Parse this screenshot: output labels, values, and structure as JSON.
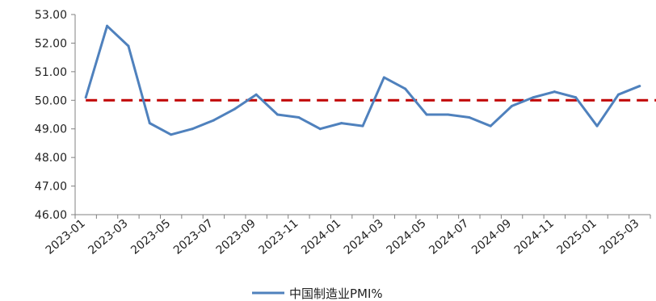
{
  "chart_data": {
    "type": "line",
    "title": "",
    "xlabel": "",
    "ylabel": "",
    "ylim": [
      46,
      53
    ],
    "y_ticks": [
      "46.00",
      "47.00",
      "48.00",
      "49.00",
      "50.00",
      "51.00",
      "52.00",
      "53.00"
    ],
    "x": [
      "2023-01",
      "2023-02",
      "2023-03",
      "2023-04",
      "2023-05",
      "2023-06",
      "2023-07",
      "2023-08",
      "2023-09",
      "2023-10",
      "2023-11",
      "2023-12",
      "2024-01",
      "2024-02",
      "2024-03",
      "2024-04",
      "2024-05",
      "2024-06",
      "2024-07",
      "2024-08",
      "2024-09",
      "2024-10",
      "2024-11",
      "2024-12",
      "2025-01",
      "2025-02",
      "2025-03"
    ],
    "x_tick_labels": [
      "2023-01",
      "2023-03",
      "2023-05",
      "2023-07",
      "2023-09",
      "2023-11",
      "2024-01",
      "2024-03",
      "2024-05",
      "2024-07",
      "2024-09",
      "2024-11",
      "2025-01",
      "2025-03"
    ],
    "series": [
      {
        "name": "中国制造业PMI%",
        "color": "#4f81bd",
        "values": [
          50.1,
          52.6,
          51.9,
          49.2,
          48.8,
          49.0,
          49.3,
          49.7,
          50.2,
          49.5,
          49.4,
          49.0,
          49.2,
          49.1,
          50.8,
          50.4,
          49.5,
          49.5,
          49.4,
          49.1,
          49.8,
          50.1,
          50.3,
          50.1,
          49.1,
          50.2,
          50.5
        ]
      }
    ],
    "reference_line": {
      "y": 50.0,
      "color": "#c00000",
      "style": "dashed"
    },
    "grid": false,
    "legend": "bottom-center"
  }
}
